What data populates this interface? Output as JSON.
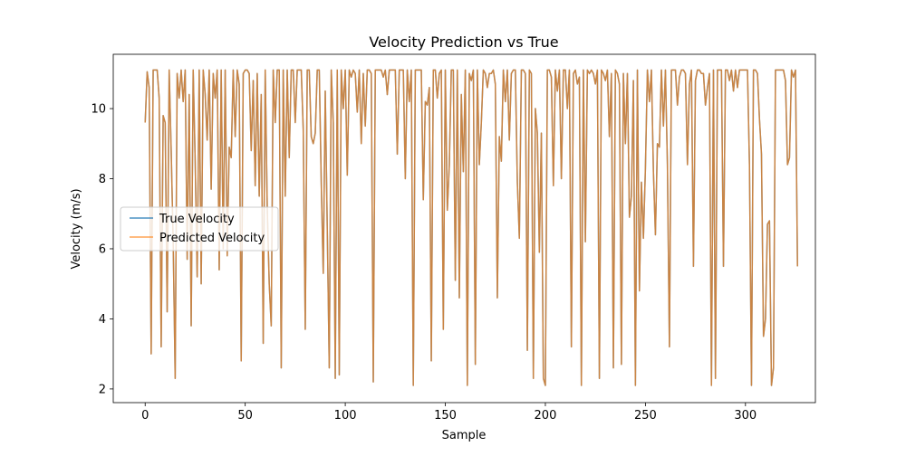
{
  "colors": {
    "true_velocity": "#1f77b4",
    "predicted_velocity": "#ff7f0e",
    "axis": "#000000",
    "legend_border": "#cccccc"
  },
  "chart_data": {
    "type": "line",
    "title": "Velocity Prediction vs True",
    "xlabel": "Sample",
    "ylabel": "Velocity (m/s)",
    "xlim": [
      -15.95,
      334.95
    ],
    "ylim": [
      1.61,
      11.55
    ],
    "xticks": [
      0,
      50,
      100,
      150,
      200,
      250,
      300
    ],
    "yticks": [
      2,
      4,
      6,
      8,
      10
    ],
    "grid": false,
    "legend_position": "center-left",
    "series": [
      {
        "name": "True Velocity",
        "color": "#1f77b4",
        "alpha": 0.8,
        "values": [
          9.6,
          11.05,
          10.6,
          3.0,
          11.1,
          11.1,
          11.1,
          10.3,
          3.2,
          9.8,
          9.6,
          4.2,
          11.1,
          8.8,
          6.2,
          2.3,
          11.0,
          10.3,
          11.1,
          10.2,
          11.1,
          5.7,
          10.4,
          3.8,
          11.1,
          8.5,
          5.2,
          11.1,
          5.0,
          11.1,
          10.4,
          9.1,
          11.1,
          7.7,
          11.0,
          10.3,
          11.1,
          5.4,
          11.1,
          6.0,
          11.1,
          5.8,
          8.9,
          8.6,
          11.1,
          9.2,
          11.1,
          10.7,
          2.8,
          11.0,
          11.1,
          11.1,
          11.0,
          8.8,
          10.8,
          7.8,
          11.0,
          7.5,
          10.4,
          3.3,
          11.1,
          7.2,
          5.0,
          3.8,
          11.1,
          9.6,
          11.1,
          11.1,
          2.6,
          11.1,
          7.5,
          11.1,
          8.6,
          11.1,
          11.1,
          9.6,
          11.1,
          11.1,
          11.1,
          9.4,
          3.7,
          11.1,
          11.1,
          9.2,
          9.0,
          9.3,
          11.1,
          11.1,
          7.9,
          5.3,
          10.5,
          6.6,
          2.6,
          11.1,
          9.6,
          2.3,
          11.1,
          2.4,
          11.1,
          10.0,
          11.1,
          8.1,
          11.1,
          10.9,
          11.1,
          11.0,
          9.9,
          11.1,
          9.0,
          11.0,
          9.5,
          11.1,
          11.1,
          11.0,
          2.2,
          11.1,
          11.1,
          11.1,
          11.1,
          10.9,
          11.1,
          10.4,
          11.1,
          11.1,
          11.1,
          11.1,
          8.7,
          11.1,
          11.1,
          11.1,
          8.0,
          11.1,
          10.2,
          11.1,
          2.1,
          11.1,
          11.1,
          11.1,
          11.1,
          7.4,
          10.2,
          10.1,
          10.6,
          2.8,
          11.1,
          11.1,
          10.3,
          11.0,
          11.1,
          3.7,
          11.1,
          7.1,
          8.4,
          11.1,
          11.1,
          5.1,
          11.1,
          4.6,
          10.4,
          8.2,
          11.1,
          2.1,
          11.0,
          10.8,
          11.1,
          2.7,
          11.1,
          8.4,
          9.6,
          11.1,
          11.0,
          10.6,
          11.0,
          11.0,
          11.1,
          10.7,
          4.6,
          9.2,
          8.5,
          11.1,
          10.2,
          11.1,
          9.1,
          11.0,
          11.1,
          11.1,
          7.9,
          6.3,
          11.1,
          11.1,
          11.0,
          3.1,
          11.1,
          11.0,
          2.3,
          10.0,
          9.3,
          5.9,
          9.3,
          2.3,
          2.1,
          11.1,
          11.1,
          10.9,
          7.8,
          11.1,
          10.5,
          11.1,
          8.0,
          11.1,
          11.1,
          10.0,
          11.1,
          3.2,
          11.0,
          11.1,
          10.7,
          10.9,
          2.1,
          11.1,
          6.2,
          11.1,
          11.0,
          11.1,
          11.0,
          10.7,
          11.1,
          2.3,
          11.1,
          11.0,
          10.8,
          11.1,
          9.2,
          11.0,
          2.6,
          11.1,
          11.0,
          10.7,
          2.7,
          11.0,
          9.0,
          11.0,
          6.9,
          7.5,
          10.8,
          2.1,
          11.1,
          4.8,
          7.9,
          6.3,
          8.3,
          11.1,
          10.2,
          11.1,
          8.2,
          6.4,
          9.0,
          8.9,
          11.1,
          9.5,
          11.1,
          8.4,
          3.2,
          11.1,
          11.1,
          11.1,
          10.1,
          10.9,
          11.1,
          11.1,
          11.0,
          8.4,
          10.7,
          11.1,
          5.5,
          10.8,
          11.1,
          11.1,
          11.0,
          11.0,
          10.1,
          10.6,
          11.0,
          2.1,
          11.1,
          2.3,
          11.1,
          11.1,
          11.1,
          5.5,
          11.1,
          11.1,
          10.8,
          11.1,
          10.5,
          11.1,
          10.6,
          11.1,
          11.1,
          11.1,
          11.1,
          11.1,
          8.4,
          2.1,
          11.1,
          11.1,
          11.0,
          9.7,
          8.7,
          3.5,
          4.0,
          6.7,
          6.8,
          2.1,
          2.6,
          11.1,
          11.1,
          11.1,
          11.1,
          11.1,
          10.8,
          8.4,
          8.6,
          11.1,
          10.9,
          11.1,
          5.5
        ]
      },
      {
        "name": "Predicted Velocity",
        "color": "#ff7f0e",
        "alpha": 0.7,
        "values": [
          9.6,
          11.05,
          10.6,
          3.0,
          11.1,
          11.1,
          11.1,
          10.3,
          3.2,
          9.8,
          9.6,
          4.2,
          11.1,
          8.8,
          6.2,
          2.3,
          11.0,
          10.3,
          11.1,
          10.2,
          11.1,
          5.7,
          10.4,
          3.8,
          11.1,
          8.5,
          5.2,
          11.1,
          5.0,
          11.1,
          10.4,
          9.1,
          11.1,
          7.7,
          11.0,
          10.3,
          11.1,
          5.4,
          11.1,
          6.0,
          11.1,
          5.8,
          8.9,
          8.6,
          11.1,
          9.2,
          11.1,
          10.7,
          2.8,
          11.0,
          11.1,
          11.1,
          11.0,
          8.8,
          10.8,
          7.8,
          11.0,
          7.5,
          10.4,
          3.3,
          11.1,
          7.2,
          5.0,
          3.8,
          11.1,
          9.6,
          11.1,
          11.1,
          2.6,
          11.1,
          7.5,
          11.1,
          8.6,
          11.1,
          11.1,
          9.6,
          11.1,
          11.1,
          11.1,
          9.4,
          3.7,
          11.1,
          11.1,
          9.2,
          9.0,
          9.3,
          11.1,
          11.1,
          7.9,
          5.3,
          10.5,
          6.6,
          2.6,
          11.1,
          9.6,
          2.3,
          11.1,
          2.4,
          11.1,
          10.0,
          11.1,
          8.1,
          11.1,
          10.9,
          11.1,
          11.0,
          9.9,
          11.1,
          9.0,
          11.0,
          9.5,
          11.1,
          11.1,
          11.0,
          2.2,
          11.1,
          11.1,
          11.1,
          11.1,
          10.9,
          11.1,
          10.4,
          11.1,
          11.1,
          11.1,
          11.1,
          8.7,
          11.1,
          11.1,
          11.1,
          8.0,
          11.1,
          10.2,
          11.1,
          2.1,
          11.1,
          11.1,
          11.1,
          11.1,
          7.4,
          10.2,
          10.1,
          10.6,
          2.8,
          11.1,
          11.1,
          10.3,
          11.0,
          11.1,
          3.7,
          11.1,
          7.1,
          8.4,
          11.1,
          11.1,
          5.1,
          11.1,
          4.6,
          10.4,
          8.2,
          11.1,
          2.1,
          11.0,
          10.8,
          11.1,
          2.7,
          11.1,
          8.4,
          9.6,
          11.1,
          11.0,
          10.6,
          11.0,
          11.0,
          11.1,
          10.7,
          4.6,
          9.2,
          8.5,
          11.1,
          10.2,
          11.1,
          9.1,
          11.0,
          11.1,
          11.1,
          7.9,
          6.3,
          11.1,
          11.1,
          11.0,
          3.1,
          11.1,
          11.0,
          2.3,
          10.0,
          9.3,
          5.9,
          9.3,
          2.3,
          2.1,
          11.1,
          11.1,
          10.9,
          7.8,
          11.1,
          10.5,
          11.1,
          8.0,
          11.1,
          11.1,
          10.0,
          11.1,
          3.2,
          11.0,
          11.1,
          10.7,
          10.9,
          2.1,
          11.1,
          6.2,
          11.1,
          11.0,
          11.1,
          11.0,
          10.7,
          11.1,
          2.3,
          11.1,
          11.0,
          10.8,
          11.1,
          9.2,
          11.0,
          2.6,
          11.1,
          11.0,
          10.7,
          2.7,
          11.0,
          9.0,
          11.0,
          6.9,
          7.5,
          10.8,
          2.1,
          11.1,
          4.8,
          7.9,
          6.3,
          8.3,
          11.1,
          10.2,
          11.1,
          8.2,
          6.4,
          9.0,
          8.9,
          11.1,
          9.5,
          11.1,
          8.4,
          3.2,
          11.1,
          11.1,
          11.1,
          10.1,
          10.9,
          11.1,
          11.1,
          11.0,
          8.4,
          10.7,
          11.1,
          5.5,
          10.8,
          11.1,
          11.1,
          11.0,
          11.0,
          10.1,
          10.6,
          11.0,
          2.1,
          11.1,
          2.3,
          11.1,
          11.1,
          11.1,
          5.5,
          11.1,
          11.1,
          10.8,
          11.1,
          10.5,
          11.1,
          10.6,
          11.1,
          11.1,
          11.1,
          11.1,
          11.1,
          8.4,
          2.1,
          11.1,
          11.1,
          11.0,
          9.7,
          8.7,
          3.5,
          4.0,
          6.7,
          6.8,
          2.1,
          2.6,
          11.1,
          11.1,
          11.1,
          11.1,
          11.1,
          10.8,
          8.4,
          8.6,
          11.1,
          10.9,
          11.1,
          5.5
        ]
      }
    ]
  }
}
